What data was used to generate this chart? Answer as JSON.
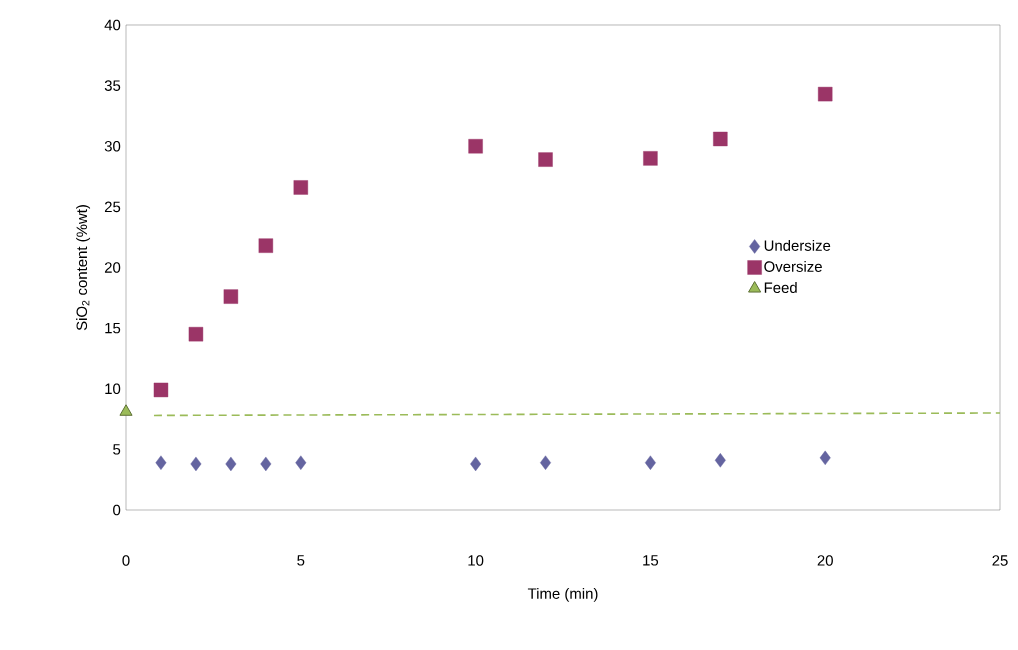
{
  "chart_data": {
    "type": "scatter",
    "xlabel": "Time (min)",
    "ylabel": "SiO$_{2}$ content (%wt)",
    "xlim": [
      0,
      25
    ],
    "xticks": [
      0,
      5,
      10,
      15,
      20,
      25
    ],
    "ylim": [
      0,
      40
    ],
    "yticks": [
      0,
      5,
      10,
      15,
      20,
      25,
      30,
      35,
      40
    ],
    "grid": false,
    "legend": "right",
    "series": [
      {
        "name": "Undersize",
        "color": "#6464a0",
        "marker": "diamond",
        "x": [
          1,
          2,
          3,
          4,
          5,
          10,
          12,
          15,
          17,
          20
        ],
        "values": [
          3.9,
          3.8,
          3.8,
          3.8,
          3.9,
          3.8,
          3.9,
          3.9,
          4.1,
          4.3
        ]
      },
      {
        "name": "Oversize",
        "color": "#9b3567",
        "marker": "square",
        "x": [
          1,
          2,
          3,
          4,
          5,
          10,
          12,
          15,
          17,
          20
        ],
        "values": [
          9.9,
          14.5,
          17.6,
          21.8,
          26.6,
          30.0,
          28.9,
          29.0,
          30.6,
          34.3
        ]
      },
      {
        "name": "Feed",
        "color": "#9bbb59",
        "marker": "triangle",
        "x": [
          0
        ],
        "values": [
          8.1
        ]
      },
      {
        "type": "line",
        "color": "#9bbb59",
        "line_style": "dashed",
        "marker": "none",
        "x": [
          0.8,
          25
        ],
        "values": [
          7.8,
          8.0
        ]
      }
    ]
  }
}
